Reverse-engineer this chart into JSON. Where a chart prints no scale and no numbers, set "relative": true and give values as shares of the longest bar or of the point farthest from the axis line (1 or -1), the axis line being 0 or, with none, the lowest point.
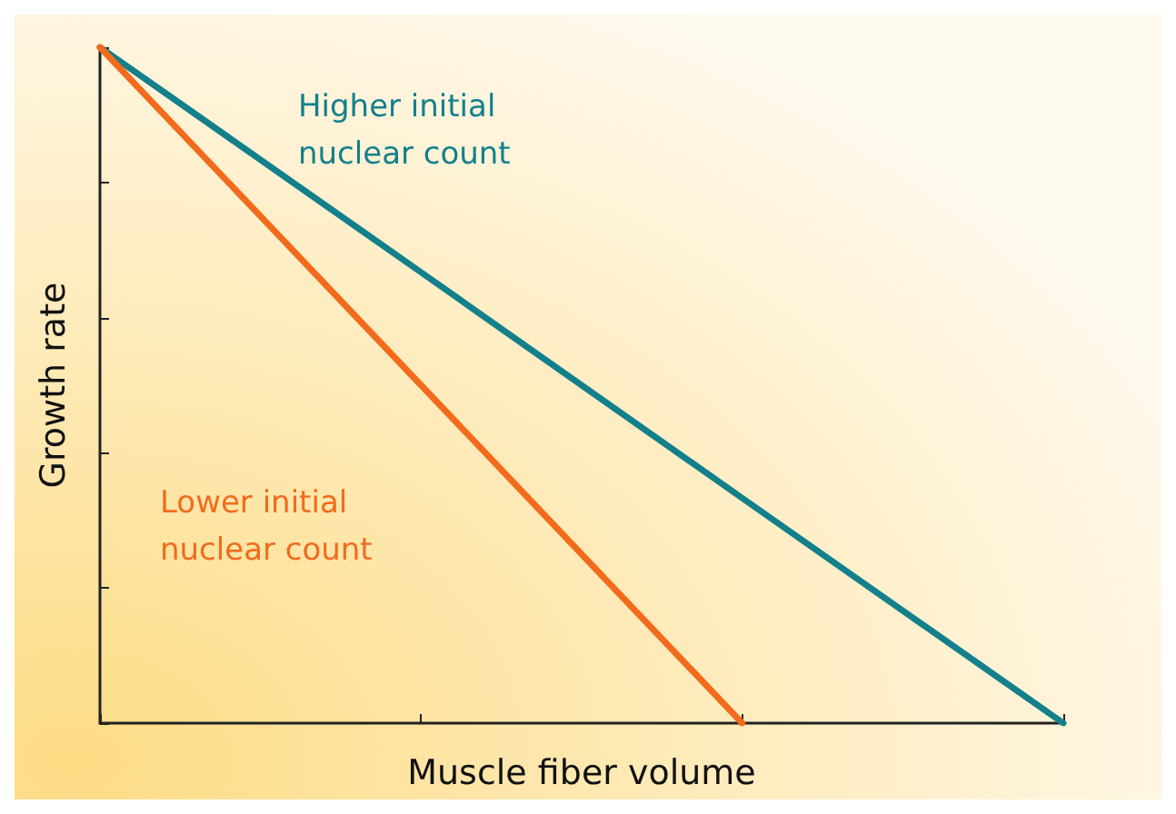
{
  "chart_data": {
    "type": "line",
    "relative": true,
    "xlabel": "Muscle fiber volume",
    "ylabel": "Growth rate",
    "categories": [
      null,
      null,
      null,
      null
    ],
    "series": [
      {
        "name": "Higher initial nuclear count",
        "color": "#13808c",
        "values": [
          1,
          0.667,
          0.333,
          0
        ]
      },
      {
        "name": "Lower initial nuclear count",
        "color": "#f26b1d",
        "values": [
          1,
          0.5,
          0,
          null
        ]
      }
    ],
    "legend": false,
    "grid": false,
    "marker": "none",
    "line_style": "solid"
  }
}
